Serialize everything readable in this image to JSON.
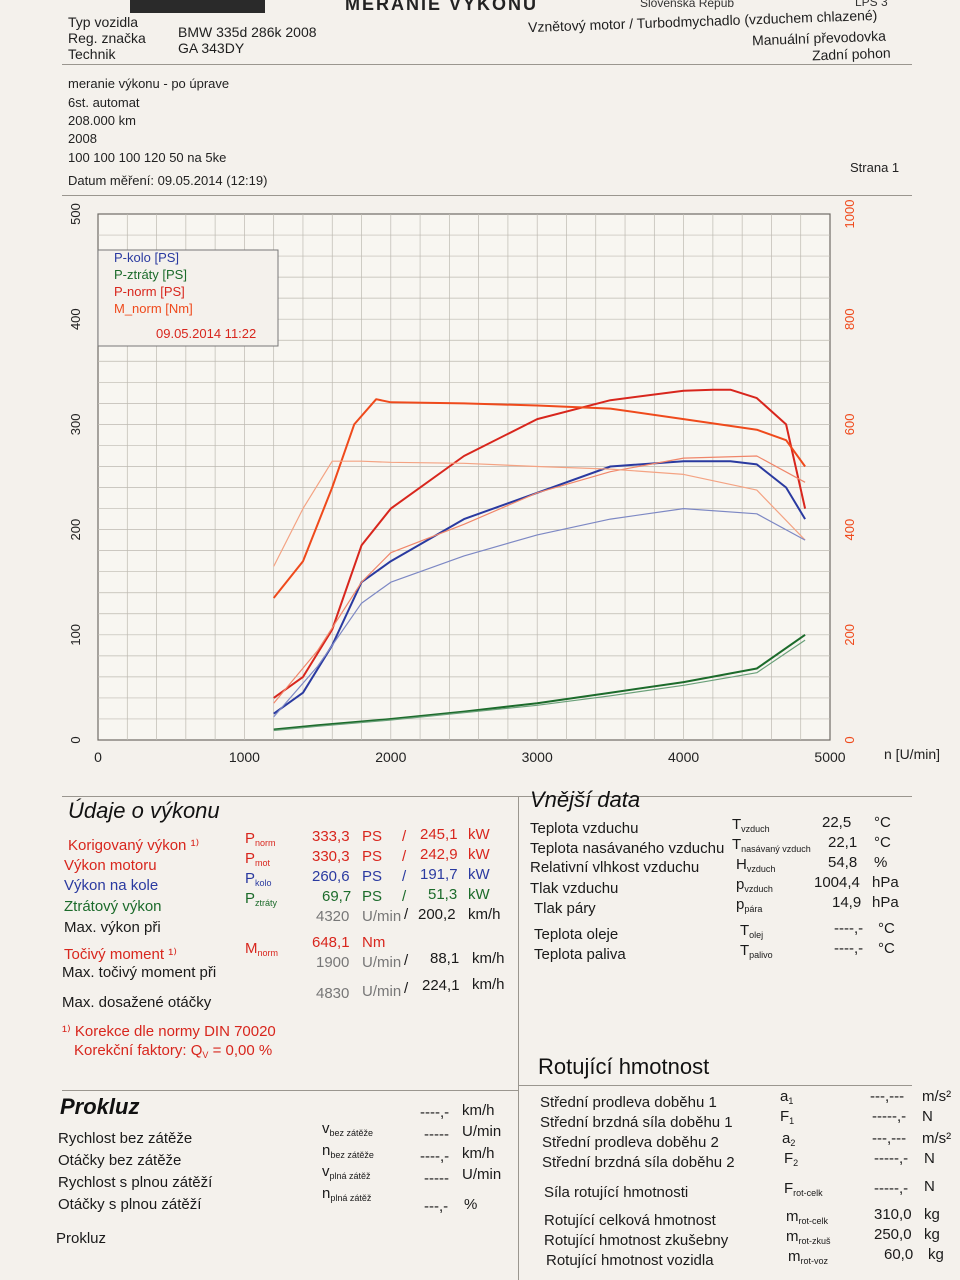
{
  "header": {
    "title": "MERANIE VÝKONU",
    "country": "Slovenská Repub",
    "doc_code": "LPS 3",
    "vehicle_type_label": "Typ vozidla",
    "vehicle_type": "BMW 335d 286k 2008",
    "reg_label": "Reg. značka",
    "reg_value": "GA 343DY",
    "technician_label": "Technik",
    "engine_line1": "Vznětový motor / Turbodmychadlo (vzduchem chlazené)",
    "engine_line2": "Manuální převodovka",
    "engine_line3": "Zadní pohon",
    "notes": [
      "meranie výkonu - po úprave",
      "6st. automat",
      "208.000 km",
      "2008",
      "100 100 100 120 50 na 5ke"
    ],
    "date_label": "Datum měření: 09.05.2014 (12:19)",
    "page_label": "Strana 1"
  },
  "chart_data": {
    "type": "line",
    "x_label": "n [U/min]",
    "x_ticks": [
      "0",
      "1000",
      "2000",
      "3000",
      "4000",
      "5000"
    ],
    "xlim": [
      0,
      5000
    ],
    "y_left_ticks": [
      "0",
      "100",
      "200",
      "300",
      "400",
      "500"
    ],
    "ylim_left": [
      0,
      500
    ],
    "y_right_ticks": [
      "0",
      "200",
      "400",
      "600",
      "800",
      "1000"
    ],
    "ylim_right": [
      0,
      1000
    ],
    "grid": true,
    "legend_placement": "top-left",
    "legend": [
      "P-kolo [PS]",
      "P-ztráty [PS]",
      "P-norm [PS]",
      "M_norm [Nm]"
    ],
    "legend_timestamp": "09.05.2014 11:22",
    "series": [
      {
        "name": "P-norm [PS]",
        "color": "#d8261d",
        "axis": "left",
        "x": [
          1200,
          1400,
          1600,
          1800,
          2000,
          2500,
          3000,
          3500,
          4000,
          4200,
          4320,
          4500,
          4700,
          4830
        ],
        "y": [
          40,
          60,
          105,
          185,
          220,
          270,
          305,
          323,
          332,
          333,
          333,
          325,
          300,
          220
        ]
      },
      {
        "name": "M_norm [Nm]",
        "color": "#ef4a1c",
        "axis": "right",
        "x": [
          1200,
          1400,
          1600,
          1750,
          1900,
          2000,
          2500,
          3000,
          3500,
          4000,
          4500,
          4700,
          4830
        ],
        "y": [
          270,
          340,
          480,
          600,
          648,
          642,
          640,
          636,
          630,
          610,
          590,
          570,
          520
        ]
      },
      {
        "name": "P-kolo [PS]",
        "color": "#2a3aa0",
        "axis": "left",
        "x": [
          1200,
          1400,
          1600,
          1800,
          2000,
          2500,
          3000,
          3500,
          4000,
          4320,
          4500,
          4700,
          4830
        ],
        "y": [
          25,
          45,
          90,
          150,
          170,
          210,
          235,
          260,
          265,
          265,
          262,
          240,
          210
        ]
      },
      {
        "name": "P-ztráty [PS]",
        "color": "#1c6b2b",
        "axis": "left",
        "x": [
          1200,
          1500,
          2000,
          2500,
          3000,
          3500,
          4000,
          4500,
          4830
        ],
        "y": [
          10,
          14,
          20,
          27,
          35,
          45,
          55,
          68,
          100
        ]
      },
      {
        "name": "P-norm (před úpravou)",
        "color": "#f0866a",
        "axis": "left",
        "x": [
          1200,
          1500,
          1800,
          2000,
          2500,
          3000,
          3500,
          4000,
          4500,
          4830
        ],
        "y": [
          35,
          85,
          150,
          178,
          205,
          235,
          255,
          268,
          270,
          245
        ]
      },
      {
        "name": "M_norm (před úpravou)",
        "color": "#f4a383",
        "axis": "right",
        "x": [
          1200,
          1400,
          1600,
          1800,
          2000,
          2500,
          3000,
          3500,
          4000,
          4500,
          4830
        ],
        "y": [
          330,
          440,
          530,
          530,
          528,
          526,
          520,
          515,
          505,
          475,
          380
        ]
      },
      {
        "name": "P-kolo (před úpravou)",
        "color": "#7d88c4",
        "axis": "left",
        "x": [
          1200,
          1500,
          1800,
          2000,
          2500,
          3000,
          3500,
          4000,
          4500,
          4830
        ],
        "y": [
          22,
          70,
          130,
          150,
          175,
          195,
          210,
          220,
          215,
          190
        ]
      },
      {
        "name": "P-ztráty (před úpravou)",
        "color": "#6aa079",
        "axis": "left",
        "x": [
          1200,
          1500,
          2000,
          2500,
          3000,
          3500,
          4000,
          4500,
          4830
        ],
        "y": [
          9,
          13,
          19,
          26,
          33,
          42,
          52,
          64,
          95
        ]
      }
    ]
  },
  "performance": {
    "title": "Údaje o výkonu",
    "rows": [
      {
        "label": "Korigovaný výkon ¹⁾",
        "sym": "P",
        "sub": "norm",
        "v1": "333,3",
        "u1": "PS",
        "sep": "/",
        "v2": "245,1",
        "u2": "kW"
      },
      {
        "label": "Výkon motoru",
        "sym": "P",
        "sub": "mot",
        "v1": "330,3",
        "u1": "PS",
        "sep": "/",
        "v2": "242,9",
        "u2": "kW"
      },
      {
        "label": "Výkon na kole",
        "sym": "P",
        "sub": "kolo",
        "v1": "260,6",
        "u1": "PS",
        "sep": "/",
        "v2": "191,7",
        "u2": "kW"
      },
      {
        "label": "Ztrátový výkon",
        "sym": "P",
        "sub": "ztráty",
        "v1": "69,7",
        "u1": "PS",
        "sep": "/",
        "v2": "51,3",
        "u2": "kW"
      }
    ],
    "max_power_label": "Max. výkon při",
    "max_power_rpm": "4320",
    "max_power_rpm_unit": "U/min",
    "max_power_speed": "200,2",
    "speed_unit": "km/h",
    "torque_label": "Točivý moment ¹⁾",
    "torque_sym": "M",
    "torque_sub": "norm",
    "torque_value": "648,1",
    "torque_unit": "Nm",
    "max_torque_label": "Max. točivý moment při",
    "max_torque_rpm": "1900",
    "max_torque_speed": "88,1",
    "max_rpm_label": "Max. dosažené otáčky",
    "max_rpm": "4830",
    "max_rpm_speed": "224,1",
    "footnote1": "¹⁾ Korekce dle normy DIN 70020",
    "footnote2": "Korekční faktory: Q",
    "footnote2_sub": "V",
    "footnote2_val": " =   0,00 %"
  },
  "external": {
    "title": "Vnější data",
    "rows": [
      {
        "label": "Teplota vzduchu",
        "sym": "T",
        "sub": "vzduch",
        "value": "22,5",
        "unit": "°C"
      },
      {
        "label": "Teplota nasávaného vzduchu",
        "sym": "T",
        "sub": "nasávaný vzduch",
        "value": "22,1",
        "unit": "°C"
      },
      {
        "label": "Relativní vlhkost vzduchu",
        "sym": "H",
        "sub": "vzduch",
        "value": "54,8",
        "unit": "%"
      },
      {
        "label": "Tlak vzduchu",
        "sym": "p",
        "sub": "vzduch",
        "value": "1004,4",
        "unit": "hPa"
      },
      {
        "label": "Tlak páry",
        "sym": "p",
        "sub": "pára",
        "value": "14,9",
        "unit": "hPa"
      },
      {
        "label": "Teplota oleje",
        "sym": "T",
        "sub": "olej",
        "value": "----,-",
        "unit": "°C"
      },
      {
        "label": "Teplota paliva",
        "sym": "T",
        "sub": "palivo",
        "value": "----,-",
        "unit": "°C"
      }
    ]
  },
  "slip": {
    "title": "Prokluz",
    "rows": [
      {
        "label": "Rychlost bez zátěže",
        "sym": "v",
        "sub": "bez zátěže",
        "value": "----,-",
        "unit": "km/h"
      },
      {
        "label": "Otáčky bez zátěže",
        "sym": "n",
        "sub": "bez zátěže",
        "value": "-----",
        "unit": "U/min"
      },
      {
        "label": "Rychlost s plnou zátěží",
        "sym": "v",
        "sub": "plná zátěž",
        "value": "----,-",
        "unit": "km/h"
      },
      {
        "label": "Otáčky s plnou zátěží",
        "sym": "n",
        "sub": "plná zátěž",
        "value": "-----",
        "unit": "U/min"
      }
    ],
    "slip_label": "Prokluz",
    "slip_value": "---,-",
    "slip_unit": "%"
  },
  "rotating": {
    "title": "Rotující hmotnost",
    "rows": [
      {
        "label": "Střední prodleva doběhu 1",
        "sym": "a",
        "sub": "1",
        "value": "---,---",
        "unit": "m/s²"
      },
      {
        "label": "Střední brzdná síla doběhu 1",
        "sym": "F",
        "sub": "1",
        "value": "-----,-",
        "unit": "N"
      },
      {
        "label": "Střední prodleva doběhu 2",
        "sym": "a",
        "sub": "2",
        "value": "---,---",
        "unit": "m/s²"
      },
      {
        "label": "Střední brzdná síla doběhu 2",
        "sym": "F",
        "sub": "2",
        "value": "-----,-",
        "unit": "N"
      },
      {
        "label": "Síla rotující hmotnosti",
        "sym": "F",
        "sub": "rot-celk",
        "value": "-----,-",
        "unit": "N"
      },
      {
        "label": "Rotující celková hmotnost",
        "sym": "m",
        "sub": "rot-celk",
        "value": "310,0",
        "unit": "kg"
      },
      {
        "label": "Rotující hmotnost zkušebny",
        "sym": "m",
        "sub": "rot-zkuš",
        "value": "250,0",
        "unit": "kg"
      },
      {
        "label": "Rotující hmotnost vozidla",
        "sym": "m",
        "sub": "rot-voz",
        "value": "60,0",
        "unit": "kg"
      }
    ]
  }
}
